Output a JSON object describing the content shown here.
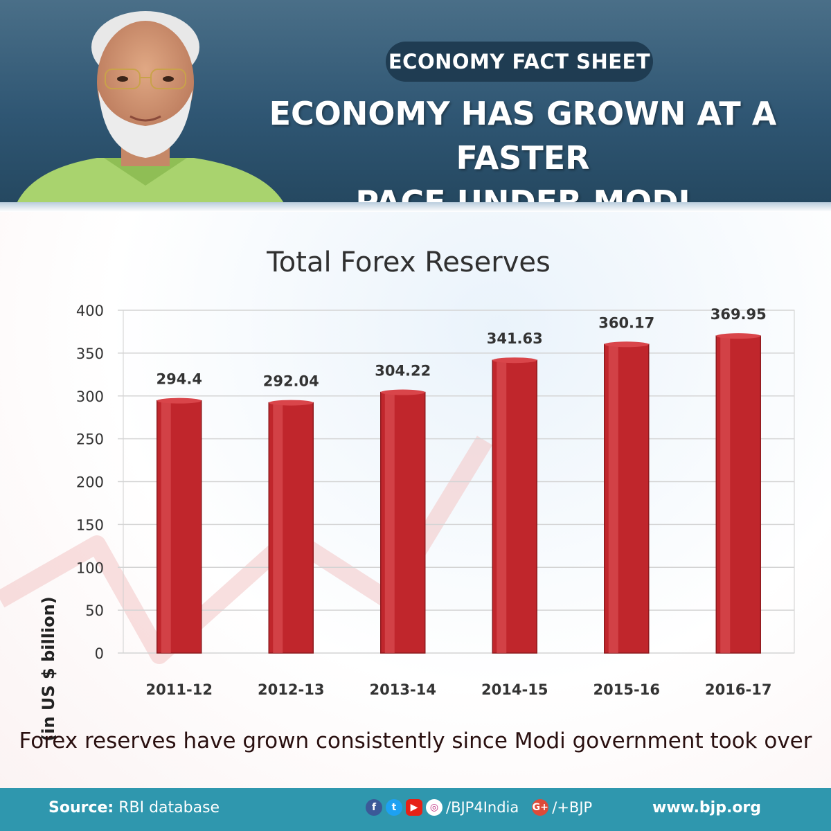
{
  "header": {
    "badge": "ECONOMY FACT SHEET",
    "headline_line1": "ECONOMY HAS GROWN AT A FASTER",
    "headline_line2": "PACE UNDER MODI GOVERNMENT"
  },
  "chart_data": {
    "type": "bar",
    "title": "Total Forex Reserves",
    "xlabel": "",
    "ylabel": "(in US $ billion)",
    "categories": [
      "2011-12",
      "2012-13",
      "2013-14",
      "2014-15",
      "2015-16",
      "2016-17"
    ],
    "values": [
      294.4,
      292.04,
      304.22,
      341.63,
      360.17,
      369.95
    ],
    "data_labels": [
      "294.4",
      "292.04",
      "304.22",
      "341.63",
      "360.17",
      "369.95"
    ],
    "ylim": [
      0,
      400
    ],
    "yticks": [
      0,
      50,
      100,
      150,
      200,
      250,
      300,
      350,
      400
    ],
    "grid": true,
    "bar_color": "#c0262c"
  },
  "caption": "Forex reserves have grown consistently since Modi government took over",
  "footer": {
    "source_label": "Source:",
    "source_value": " RBI database",
    "social_handle": "/BJP4India",
    "gplus_handle": "/+BJP",
    "website": "www.bjp.org"
  },
  "colors": {
    "header": "#2f5673",
    "footer": "#2f97ae",
    "bar": "#c0262c"
  }
}
